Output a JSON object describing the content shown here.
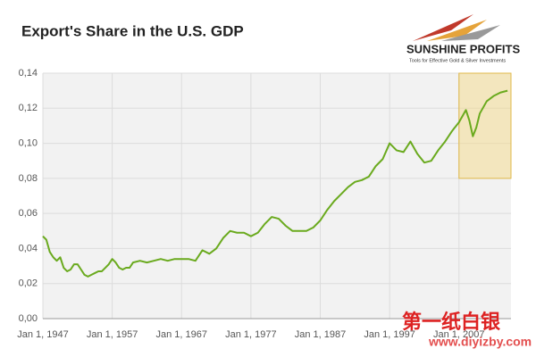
{
  "chart_data": {
    "type": "line",
    "title": "Export's Share in the U.S. GDP",
    "logo": {
      "name": "SUNSHINE PROFITS",
      "tagline": "Tools for Effective Gold & Silver Investments"
    },
    "watermark": {
      "name": "第一纸白银",
      "url": "www.diyizby.com"
    },
    "xlim": [
      1947,
      2014.5
    ],
    "ylim": [
      0,
      0.14
    ],
    "xticks": [
      {
        "value": 1947,
        "label": "Jan 1, 1947"
      },
      {
        "value": 1957,
        "label": "Jan 1, 1957"
      },
      {
        "value": 1967,
        "label": "Jan 1, 1967"
      },
      {
        "value": 1977,
        "label": "Jan 1, 1977"
      },
      {
        "value": 1987,
        "label": "Jan 1, 1987"
      },
      {
        "value": 1997,
        "label": "Jan 1, 1997"
      },
      {
        "value": 2007,
        "label": "Jan 1, 2007"
      }
    ],
    "yticks": [
      {
        "value": 0,
        "label": "0,00"
      },
      {
        "value": 0.02,
        "label": "0,02"
      },
      {
        "value": 0.04,
        "label": "0,04"
      },
      {
        "value": 0.06,
        "label": "0,06"
      },
      {
        "value": 0.08,
        "label": "0,08"
      },
      {
        "value": 0.1,
        "label": "0,10"
      },
      {
        "value": 0.12,
        "label": "0,12"
      },
      {
        "value": 0.14,
        "label": "0,14"
      }
    ],
    "grid": true,
    "highlight": {
      "xlim": [
        2007,
        2014.5
      ],
      "ylim": [
        0.08,
        0.14
      ],
      "color": "#f3d98a"
    },
    "series": [
      {
        "name": "Export's Share",
        "color": "#6aaa1e",
        "x": [
          1947,
          1947.5,
          1948,
          1948.5,
          1949,
          1949.5,
          1950,
          1950.5,
          1951,
          1951.5,
          1952,
          1952.5,
          1953,
          1953.5,
          1954,
          1954.5,
          1955,
          1955.5,
          1956,
          1956.5,
          1957,
          1957.5,
          1958,
          1958.5,
          1959,
          1959.5,
          1960,
          1961,
          1962,
          1963,
          1964,
          1965,
          1966,
          1967,
          1968,
          1969,
          1970,
          1971,
          1972,
          1973,
          1974,
          1975,
          1976,
          1977,
          1978,
          1979,
          1980,
          1981,
          1982,
          1983,
          1984,
          1985,
          1986,
          1987,
          1988,
          1989,
          1990,
          1991,
          1992,
          1993,
          1994,
          1995,
          1996,
          1997,
          1998,
          1999,
          2000,
          2001,
          2002,
          2003,
          2004,
          2005,
          2006,
          2007,
          2008,
          2008.5,
          2009,
          2009.5,
          2010,
          2011,
          2012,
          2013,
          2014
        ],
        "values": [
          0.047,
          0.045,
          0.038,
          0.035,
          0.033,
          0.035,
          0.029,
          0.027,
          0.028,
          0.031,
          0.031,
          0.028,
          0.025,
          0.024,
          0.025,
          0.026,
          0.027,
          0.027,
          0.029,
          0.031,
          0.034,
          0.032,
          0.029,
          0.028,
          0.029,
          0.029,
          0.032,
          0.033,
          0.032,
          0.033,
          0.034,
          0.033,
          0.034,
          0.034,
          0.034,
          0.033,
          0.039,
          0.037,
          0.04,
          0.046,
          0.05,
          0.049,
          0.049,
          0.047,
          0.049,
          0.054,
          0.058,
          0.057,
          0.053,
          0.05,
          0.05,
          0.05,
          0.052,
          0.056,
          0.062,
          0.067,
          0.071,
          0.075,
          0.078,
          0.079,
          0.081,
          0.087,
          0.091,
          0.1,
          0.096,
          0.095,
          0.101,
          0.094,
          0.089,
          0.09,
          0.096,
          0.101,
          0.107,
          0.112,
          0.119,
          0.113,
          0.104,
          0.109,
          0.117,
          0.124,
          0.127,
          0.129,
          0.13
        ]
      }
    ]
  }
}
